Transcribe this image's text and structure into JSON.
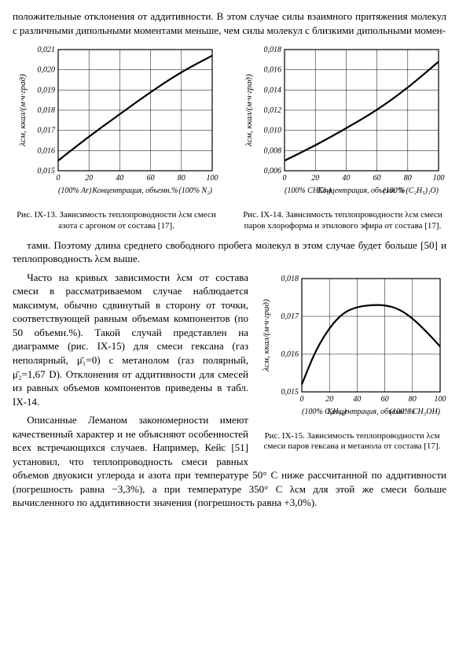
{
  "paragraphs": {
    "top": "положительные отклонения от аддитивности. В этом случае силы взаимного притяжения молекул с различными дипольными моментами меньше, чем силы молекул с близкими дипольными момен-",
    "mid1": "тами. Поэтому длина среднего свободного пробега молекул в этом случае будет больше [50] и теплопроводность λсм выше.",
    "mid2_left": "Часто на кривых зависимости λсм от состава смеси в рассматриваемом случае наблюдается максимум, обычно сдвинутый в сторону от точки, соответствующей равным объемам компонентов (по 50 объемн.%). Такой случай представлен на диаграмме (рис. IX-15) для смеси гексана (газ неполярный, μ̄₁=0) с метанолом (газ полярный, μ̄₂=1,67 D). Отклонения от аддитивности для смесей из равных объемов компонентов приведены в табл. IX-14.",
    "mid3_left": "Описанные Леманом закономерности имеют качественный характер и не объясняют особенностей всех встречающихся случаев. Например, Кейс [51] установил, что теплопроводность смеси равных объемов двуокиси углерода и азота при температуре 50° С ниже рассчитанной по аддитивности (погрешность равна −3,3%), а при температуре 350° С λсм для этой же смеси больше вычисленного по аддитивности значения (погрешность равна +3,0%)."
  },
  "fig13": {
    "caption": "Рис. IX-13. Зависимость теплопроводности λсм смеси азота с аргоном от состава [17].",
    "ylabel": "λсм, ккал/(м·ч·град)",
    "xlabel_left": "(100% Ar)",
    "xlabel_mid": "Концентрация, объемн.%",
    "xlabel_right": "(100% N₂)",
    "yticks": [
      "0,015",
      "0,016",
      "0,017",
      "0,018",
      "0,019",
      "0,020",
      "0,021"
    ],
    "xticks": [
      "0",
      "20",
      "40",
      "60",
      "80",
      "100"
    ],
    "nx": 5,
    "ny": 6,
    "curve": [
      [
        0,
        0.0155
      ],
      [
        20,
        0.0167
      ],
      [
        40,
        0.0178
      ],
      [
        60,
        0.0189
      ],
      [
        80,
        0.0199
      ],
      [
        100,
        0.0207
      ]
    ],
    "ylim": [
      0.015,
      0.021
    ],
    "plot_bg": "#ffffff",
    "grid_color": "#000000"
  },
  "fig14": {
    "caption": "Рис. IX-14. Зависимость теплопроводности λсм смеси паров хлороформа и этилового эфира от состава [17].",
    "ylabel": "λсм, ккал/(м·ч·град)",
    "xlabel_left": "(100% CHCl₃)",
    "xlabel_mid": "Концентрация, объемн. %",
    "xlabel_right": "(100% (C₂H₅)₂O)",
    "yticks": [
      "0,006",
      "0,008",
      "0,010",
      "0,012",
      "0,014",
      "0,016",
      "0,018"
    ],
    "xticks": [
      "0",
      "20",
      "40",
      "60",
      "80",
      "100"
    ],
    "nx": 5,
    "ny": 6,
    "curve": [
      [
        0,
        0.007
      ],
      [
        20,
        0.0085
      ],
      [
        40,
        0.0102
      ],
      [
        60,
        0.012
      ],
      [
        80,
        0.0142
      ],
      [
        100,
        0.0168
      ]
    ],
    "ylim": [
      0.006,
      0.018
    ],
    "plot_bg": "#ffffff",
    "grid_color": "#000000"
  },
  "fig15": {
    "caption": "Рис. IX-15. Зависимость теплопроводности λсм смеси паров гексана и метанола от состава [17].",
    "ylabel": "λсм, ккал/(м·ч·град)",
    "xlabel_left": "(100% C₆H₁₄)",
    "xlabel_mid": "Концентрация, объемн. %",
    "xlabel_right": "(100% CH₃OH)",
    "yticks": [
      "0,015",
      "0,016",
      "0,017",
      "0,018"
    ],
    "xticks": [
      "0",
      "20",
      "40",
      "60",
      "80",
      "100"
    ],
    "nx": 5,
    "ny": 3,
    "curve": [
      [
        0,
        0.0152
      ],
      [
        10,
        0.0161
      ],
      [
        20,
        0.0167
      ],
      [
        30,
        0.0171
      ],
      [
        40,
        0.01725
      ],
      [
        50,
        0.0173
      ],
      [
        60,
        0.0173
      ],
      [
        70,
        0.0172
      ],
      [
        80,
        0.01695
      ],
      [
        90,
        0.0166
      ],
      [
        100,
        0.0162
      ]
    ],
    "ylim": [
      0.015,
      0.018
    ],
    "plot_bg": "#ffffff",
    "grid_color": "#000000"
  }
}
